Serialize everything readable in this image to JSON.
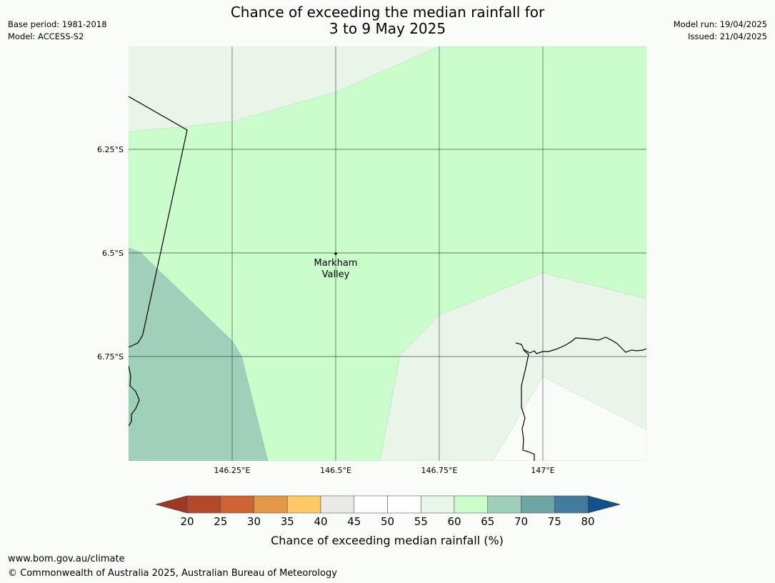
{
  "title": {
    "line1": "Chance of exceeding the median rainfall for",
    "line2": "3 to 9 May 2025"
  },
  "meta_left": {
    "base_period": "Base period: 1981-2018",
    "model": "Model: ACCESS-S2"
  },
  "meta_right": {
    "model_run": "Model run: 19/04/2025",
    "issued": "Issued: 21/04/2025"
  },
  "map": {
    "lon_ticks": [
      "146.25°E",
      "146.5°E",
      "146.75°E",
      "147°E"
    ],
    "lat_ticks": [
      "6.25°S",
      "6.5°S",
      "6.75°S"
    ],
    "place": {
      "name_line1": "Markham",
      "name_line2": "Valley"
    },
    "region_colors": {
      "60_65": "#cbfccb",
      "55_60": "#eaf5ea",
      "65_70": "#9ed0ba",
      "50_55": "#fafcfa"
    }
  },
  "colorbar": {
    "label": "Chance of exceeding median rainfall (%)",
    "ticks": [
      "20",
      "25",
      "30",
      "35",
      "40",
      "45",
      "50",
      "55",
      "60",
      "65",
      "70",
      "75",
      "80"
    ],
    "under_color": "#9b3a27",
    "over_color": "#16508a",
    "colors": [
      "#b3482a",
      "#ce6333",
      "#e39748",
      "#fec966",
      "#ebeae7",
      "#ffffff",
      "#ffffff",
      "#eaf5ea",
      "#cbfccb",
      "#9ed0ba",
      "#6ea5a4",
      "#427b9d"
    ]
  },
  "footer": {
    "url": "www.bom.gov.au/climate",
    "copyright": "© Commonwealth of Australia 2025, Australian Bureau of Meteorology"
  }
}
